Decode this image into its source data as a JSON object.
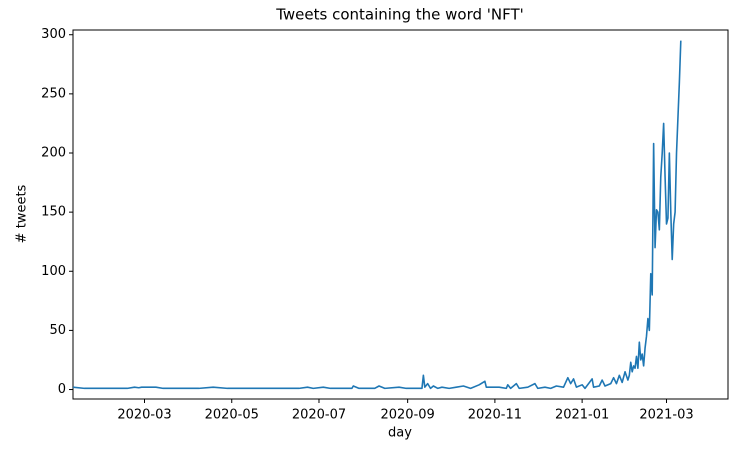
{
  "chart_data": {
    "type": "line",
    "title": "Tweets containing the word 'NFT'",
    "x_label": "day",
    "y_label": "# tweets",
    "x": [
      18272,
      18280,
      18300,
      18310,
      18315,
      18318,
      18320,
      18330,
      18335,
      18360,
      18370,
      18380,
      18430,
      18436,
      18440,
      18447,
      18452,
      18467,
      18468,
      18472,
      18483,
      18486,
      18490,
      18500,
      18505,
      18516,
      18517,
      18518,
      18520,
      18522,
      18524,
      18527,
      18530,
      18535,
      18540,
      18545,
      18550,
      18556,
      18560,
      18561,
      18570,
      18575,
      18576,
      18578,
      18582,
      18584,
      18590,
      18595,
      18597,
      18602,
      18606,
      18610,
      18615,
      18618,
      18620,
      18622,
      18624,
      18628,
      18630,
      18635,
      18636,
      18640,
      18642,
      18644,
      18648,
      18650,
      18652,
      18654,
      18656,
      18658,
      18660,
      18661,
      18662,
      18663,
      18664,
      18665,
      18666,
      18667,
      18668,
      18669,
      18670,
      18671,
      18672,
      18673,
      18674,
      18675,
      18676,
      18677,
      18678,
      18679,
      18680,
      18681,
      18682,
      18683,
      18684,
      18685,
      18686,
      18687,
      18688,
      18689,
      18690,
      18691,
      18692,
      18693,
      18694,
      18695,
      18696,
      18697
    ],
    "series": [
      {
        "name": "tweets",
        "color": "#1f77b4",
        "values": [
          2,
          1,
          1,
          1,
          2,
          1.5,
          2,
          2,
          1,
          1,
          2,
          1,
          1,
          2,
          1,
          2,
          1,
          1,
          3,
          1,
          1,
          3,
          1,
          2,
          1,
          1,
          12,
          2,
          5,
          1,
          3,
          1,
          2,
          1,
          2,
          3,
          1,
          4,
          7,
          2,
          2,
          1,
          4,
          1,
          5,
          1,
          2,
          5,
          1,
          2,
          1,
          3,
          2,
          10,
          5,
          9,
          2,
          4,
          1,
          9,
          2,
          3,
          8,
          3,
          5,
          10,
          5,
          12,
          6,
          15,
          8,
          12,
          23,
          15,
          20,
          18,
          28,
          18,
          40,
          25,
          30,
          20,
          35,
          45,
          60,
          50,
          98,
          80,
          208,
          120,
          152,
          150,
          135,
          180,
          200,
          225,
          180,
          140,
          145,
          200,
          150,
          110,
          140,
          150,
          200,
          230,
          260,
          295
        ]
      }
    ],
    "xlim": [
      18272,
      18730
    ],
    "ylim": [
      -8,
      304
    ],
    "xticks": [
      {
        "value": 18322,
        "label": "2020-03"
      },
      {
        "value": 18383,
        "label": "2020-05"
      },
      {
        "value": 18444,
        "label": "2020-07"
      },
      {
        "value": 18506,
        "label": "2020-09"
      },
      {
        "value": 18567,
        "label": "2020-11"
      },
      {
        "value": 18628,
        "label": "2021-01"
      },
      {
        "value": 18687,
        "label": "2021-03"
      }
    ],
    "yticks": [
      0,
      50,
      100,
      150,
      200,
      250,
      300
    ]
  }
}
